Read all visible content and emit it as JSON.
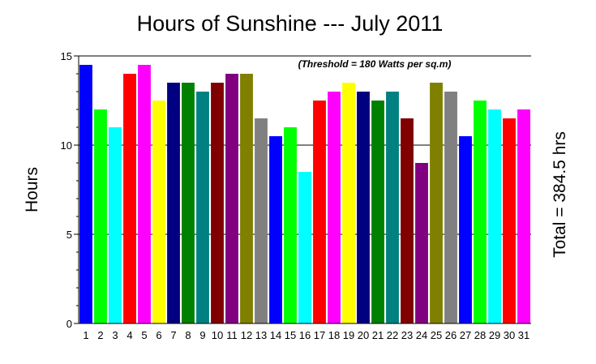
{
  "chart_data": {
    "type": "bar",
    "title": "Hours of Sunshine --- July 2011",
    "annotation": "(Threshold = 180 Watts per sq.m)",
    "xlabel": "",
    "ylabel": "Hours",
    "side_label": "Total = 384.5 hrs",
    "ylim": [
      0,
      15
    ],
    "yticks": [
      0,
      5,
      10,
      15
    ],
    "grid": "horizontal",
    "categories": [
      "1",
      "2",
      "3",
      "4",
      "5",
      "6",
      "7",
      "8",
      "9",
      "10",
      "11",
      "12",
      "13",
      "14",
      "15",
      "16",
      "17",
      "18",
      "19",
      "20",
      "21",
      "22",
      "23",
      "24",
      "25",
      "26",
      "27",
      "28",
      "29",
      "30",
      "31"
    ],
    "values": [
      14.5,
      12,
      11,
      14,
      14.5,
      12.5,
      13.5,
      13.5,
      13,
      13.5,
      14,
      14,
      11.5,
      10.5,
      11,
      8.5,
      12.5,
      13,
      13.5,
      13,
      12.5,
      13,
      11.5,
      9,
      13.5,
      13,
      10.5,
      12.5,
      12,
      11.5,
      12
    ],
    "colors": [
      "#0000FF",
      "#00FF00",
      "#00FFFF",
      "#FF0000",
      "#FF00FF",
      "#FFFF00",
      "#000080",
      "#008000",
      "#008080",
      "#800000",
      "#800080",
      "#808000",
      "#808080",
      "#0000FF",
      "#00FF00",
      "#00FFFF",
      "#FF0000",
      "#FF00FF",
      "#FFFF00",
      "#000080",
      "#008000",
      "#008080",
      "#800000",
      "#800080",
      "#808000",
      "#808080",
      "#0000FF",
      "#00FF00",
      "#00FFFF",
      "#FF0000",
      "#FF00FF"
    ]
  }
}
